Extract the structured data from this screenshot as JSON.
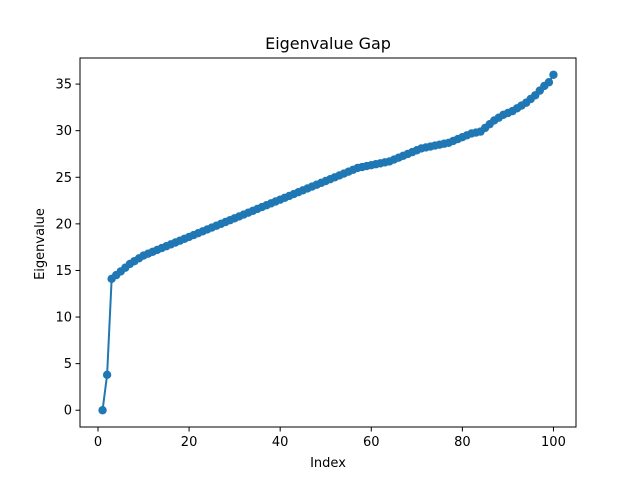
{
  "chart_data": {
    "type": "line",
    "title": "Eigenvalue Gap",
    "xlabel": "Index",
    "ylabel": "Eigenvalue",
    "xlim": [
      -3.95,
      104.95
    ],
    "ylim": [
      -1.8,
      37.8
    ],
    "xticks": [
      0,
      20,
      40,
      60,
      80,
      100
    ],
    "yticks": [
      0,
      5,
      10,
      15,
      20,
      25,
      30,
      35
    ],
    "grid": false,
    "color": "#1f77b4",
    "series": [
      {
        "x": [
          1,
          2,
          3,
          4,
          5,
          6,
          7,
          8,
          9,
          10,
          11,
          12,
          13,
          14,
          15,
          16,
          17,
          18,
          19,
          20,
          21,
          22,
          23,
          24,
          25,
          26,
          27,
          28,
          29,
          30,
          31,
          32,
          33,
          34,
          35,
          36,
          37,
          38,
          39,
          40,
          41,
          42,
          43,
          44,
          45,
          46,
          47,
          48,
          49,
          50,
          51,
          52,
          53,
          54,
          55,
          56,
          57,
          58,
          59,
          60,
          61,
          62,
          63,
          64,
          65,
          66,
          67,
          68,
          69,
          70,
          71,
          72,
          73,
          74,
          75,
          76,
          77,
          78,
          79,
          80,
          81,
          82,
          83,
          84,
          85,
          86,
          87,
          88,
          89,
          90,
          91,
          92,
          93,
          94,
          95,
          96,
          97,
          98,
          99,
          100
        ],
        "y": [
          0,
          3.8,
          14.1,
          14.5,
          14.9,
          15.3,
          15.7,
          16.0,
          16.3,
          16.6,
          16.8,
          17.0,
          17.2,
          17.4,
          17.6,
          17.8,
          18.0,
          18.2,
          18.4,
          18.6,
          18.8,
          19.0,
          19.2,
          19.4,
          19.6,
          19.8,
          20.0,
          20.2,
          20.4,
          20.6,
          20.8,
          21.0,
          21.2,
          21.4,
          21.6,
          21.8,
          22.0,
          22.2,
          22.4,
          22.6,
          22.8,
          23.0,
          23.2,
          23.4,
          23.6,
          23.8,
          24.0,
          24.2,
          24.4,
          24.6,
          24.8,
          25.0,
          25.2,
          25.4,
          25.6,
          25.8,
          26.0,
          26.1,
          26.2,
          26.3,
          26.4,
          26.5,
          26.6,
          26.7,
          26.9,
          27.1,
          27.3,
          27.5,
          27.7,
          27.9,
          28.1,
          28.2,
          28.3,
          28.4,
          28.5,
          28.6,
          28.7,
          28.9,
          29.1,
          29.3,
          29.5,
          29.7,
          29.8,
          29.9,
          30.3,
          30.7,
          31.1,
          31.4,
          31.7,
          31.9,
          32.1,
          32.4,
          32.7,
          33.0,
          33.4,
          33.8,
          34.3,
          34.8,
          35.2,
          36.0
        ]
      }
    ]
  }
}
